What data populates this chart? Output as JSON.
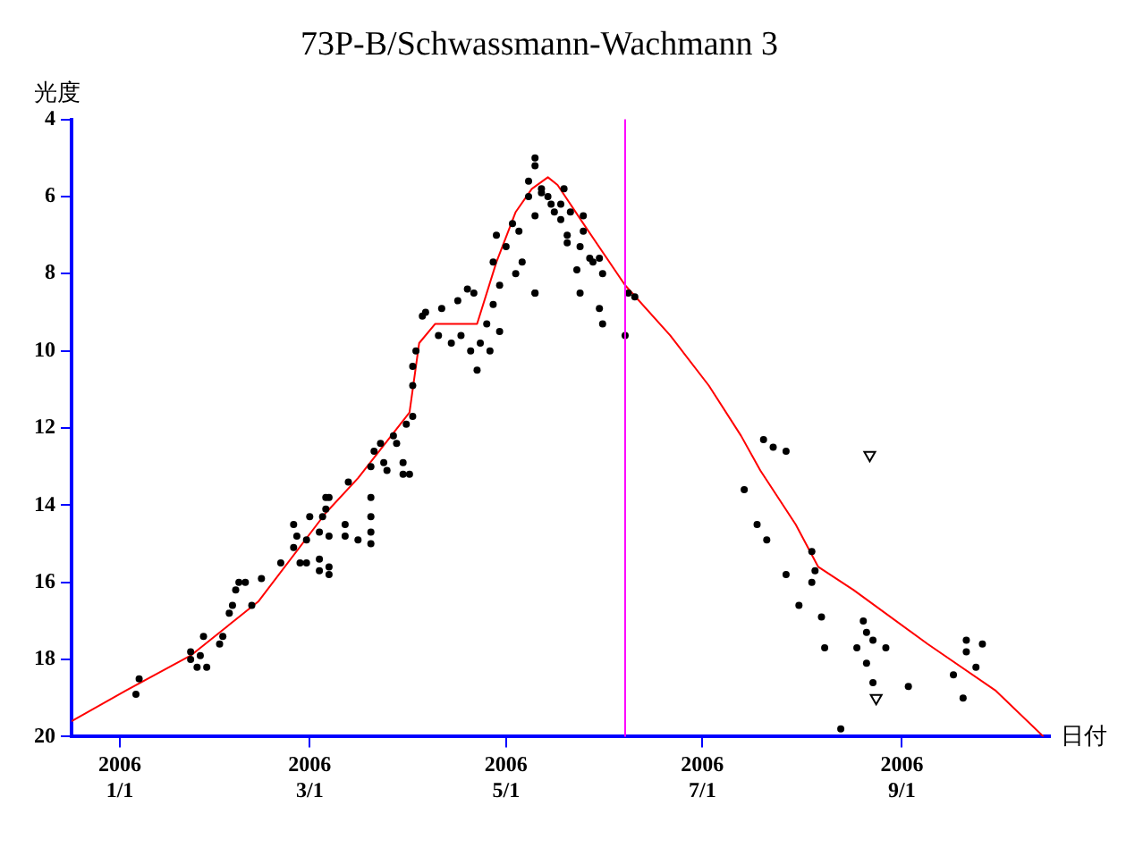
{
  "chart_data": {
    "type": "scatter",
    "title": "73P-B/Schwassmann-Wachmann 3",
    "xlabel": "日付",
    "ylabel": "光度",
    "xlim": [
      "2005-12-17",
      "2006-10-17"
    ],
    "xticks": [
      {
        "value": "2006-01-01",
        "label": "2006 1/1"
      },
      {
        "value": "2006-03-01",
        "label": "2006 3/1"
      },
      {
        "value": "2006-05-01",
        "label": "2006 5/1"
      },
      {
        "value": "2006-07-01",
        "label": "2006 7/1"
      },
      {
        "value": "2006-09-01",
        "label": "2006 9/1"
      }
    ],
    "ylim": [
      20,
      4
    ],
    "yticks": [
      4,
      6,
      8,
      10,
      12,
      14,
      16,
      18,
      20
    ],
    "ref_lines": [
      {
        "axis": "x",
        "value": "2006-06-07",
        "color": "#ff00ff"
      }
    ],
    "series": [
      {
        "type": "scatter",
        "marker": "triangle",
        "color": "#000000",
        "x": [
          "2006-08-22",
          "2006-08-24"
        ],
        "values": [
          12.7,
          19.0
        ]
      },
      {
        "color": "#000000",
        "marker": "circle",
        "x": [
          "2006-01-07",
          "2006-01-06",
          "2006-01-23",
          "2006-01-23",
          "2006-01-25",
          "2006-01-28",
          "2006-01-26",
          "2006-01-27",
          "2006-02-01",
          "2006-02-02",
          "2006-02-04",
          "2006-02-05",
          "2006-02-06",
          "2006-02-07",
          "2006-02-09",
          "2006-02-11",
          "2006-02-14",
          "2006-02-20",
          "2006-02-24",
          "2006-02-25",
          "2006-02-24",
          "2006-02-26",
          "2006-02-28",
          "2006-02-28",
          "2006-03-01",
          "2006-03-04",
          "2006-03-04",
          "2006-03-07",
          "2006-03-07",
          "2006-03-04",
          "2006-03-05",
          "2006-03-06",
          "2006-03-07",
          "2006-03-07",
          "2006-03-12",
          "2006-03-12",
          "2006-03-13",
          "2006-03-16",
          "2006-03-20",
          "2006-03-20",
          "2006-03-20",
          "2006-03-20",
          "2006-03-20",
          "2006-03-21",
          "2006-03-23",
          "2006-03-24",
          "2006-03-25",
          "2006-03-28",
          "2006-03-30",
          "2006-03-30",
          "2006-04-01",
          "2006-03-27",
          "2006-03-31",
          "2006-04-02",
          "2006-03-06",
          "2006-04-02",
          "2006-04-02",
          "2006-04-03",
          "2006-04-05",
          "2006-04-06",
          "2006-04-11",
          "2006-04-16",
          "2006-04-19",
          "2006-04-21",
          "2006-04-10",
          "2006-04-14",
          "2006-04-17",
          "2006-04-20",
          "2006-04-22",
          "2006-04-23",
          "2006-04-26",
          "2006-04-29",
          "2006-04-25",
          "2006-04-27",
          "2006-04-29",
          "2006-04-27",
          "2006-05-01",
          "2006-05-04",
          "2006-05-06",
          "2006-05-10",
          "2006-04-28",
          "2006-05-03",
          "2006-05-05",
          "2006-05-08",
          "2006-05-10",
          "2006-05-10",
          "2006-05-12",
          "2006-05-15",
          "2006-05-08",
          "2006-05-12",
          "2006-05-19",
          "2006-05-14",
          "2006-05-18",
          "2006-05-10",
          "2006-05-16",
          "2006-05-18",
          "2006-05-21",
          "2006-05-25",
          "2006-05-20",
          "2006-05-20",
          "2006-05-24",
          "2006-05-25",
          "2006-05-27",
          "2006-05-28",
          "2006-05-30",
          "2006-05-31",
          "2006-05-23",
          "2006-05-24",
          "2006-05-10",
          "2006-05-30",
          "2006-05-31",
          "2006-06-07",
          "2006-06-08",
          "2006-06-10",
          "2006-07-20",
          "2006-07-23",
          "2006-07-27",
          "2006-07-14",
          "2006-07-18",
          "2006-07-21",
          "2006-08-04",
          "2006-08-05",
          "2006-08-04",
          "2006-07-27",
          "2006-07-31",
          "2006-08-07",
          "2006-08-08",
          "2006-08-18",
          "2006-08-20",
          "2006-08-21",
          "2006-08-23",
          "2006-08-27",
          "2006-08-21",
          "2006-08-23",
          "2006-09-03",
          "2006-08-13",
          "2006-09-17",
          "2006-09-20",
          "2006-09-21",
          "2006-09-21",
          "2006-09-24",
          "2006-09-26"
        ],
        "values": [
          18.5,
          18.9,
          17.8,
          18.0,
          18.2,
          18.2,
          17.9,
          17.4,
          17.6,
          17.4,
          16.8,
          16.6,
          16.2,
          16.0,
          16.0,
          16.6,
          15.9,
          15.5,
          14.5,
          14.8,
          15.1,
          15.5,
          15.5,
          14.9,
          14.3,
          15.4,
          15.7,
          15.6,
          15.8,
          14.7,
          14.3,
          13.8,
          13.8,
          14.8,
          14.5,
          14.8,
          13.4,
          14.9,
          15.0,
          14.7,
          14.3,
          13.8,
          13.0,
          12.6,
          12.4,
          12.9,
          13.1,
          12.4,
          12.9,
          13.2,
          13.2,
          12.2,
          11.9,
          11.7,
          14.1,
          10.9,
          10.4,
          10.0,
          9.1,
          9.0,
          8.9,
          8.7,
          8.4,
          8.5,
          9.6,
          9.8,
          9.6,
          10.0,
          10.5,
          9.8,
          10.0,
          9.5,
          9.3,
          8.8,
          8.3,
          7.7,
          7.3,
          8.0,
          7.7,
          8.5,
          7.0,
          6.7,
          6.9,
          6.0,
          5.2,
          5.0,
          5.9,
          6.2,
          5.6,
          5.8,
          5.8,
          6.0,
          6.2,
          6.5,
          6.4,
          6.6,
          6.4,
          6.5,
          7.0,
          7.2,
          7.3,
          6.9,
          7.6,
          7.7,
          7.6,
          8.0,
          7.9,
          8.5,
          8.5,
          8.9,
          9.3,
          9.6,
          8.5,
          8.6,
          12.3,
          12.5,
          12.6,
          13.6,
          14.5,
          14.9,
          15.2,
          15.7,
          16.0,
          15.8,
          16.6,
          16.9,
          17.7,
          17.7,
          17.0,
          17.3,
          17.5,
          17.7,
          18.1,
          18.6,
          18.7,
          19.8,
          18.4,
          19.0,
          17.5,
          17.8,
          18.2,
          17.6
        ]
      },
      {
        "type": "line",
        "color": "#ff0000",
        "marker": "none",
        "x": [
          "2005-12-17",
          "2006-01-03",
          "2006-01-23",
          "2006-02-13",
          "2006-03-06",
          "2006-03-16",
          "2006-04-01",
          "2006-04-04",
          "2006-04-09",
          "2006-04-22",
          "2006-04-28",
          "2006-05-04",
          "2006-05-09",
          "2006-05-14",
          "2006-05-17",
          "2006-05-25",
          "2006-06-07",
          "2006-06-21",
          "2006-07-03",
          "2006-07-13",
          "2006-07-19",
          "2006-07-30",
          "2006-08-06",
          "2006-08-17",
          "2006-09-09",
          "2006-09-30",
          "2006-10-15"
        ],
        "values": [
          19.6,
          18.8,
          17.9,
          16.5,
          14.2,
          13.3,
          11.6,
          9.8,
          9.3,
          9.3,
          7.7,
          6.4,
          5.8,
          5.5,
          5.7,
          6.7,
          8.3,
          9.6,
          10.9,
          12.2,
          13.1,
          14.5,
          15.6,
          16.2,
          17.6,
          18.8,
          20.0
        ]
      }
    ]
  }
}
